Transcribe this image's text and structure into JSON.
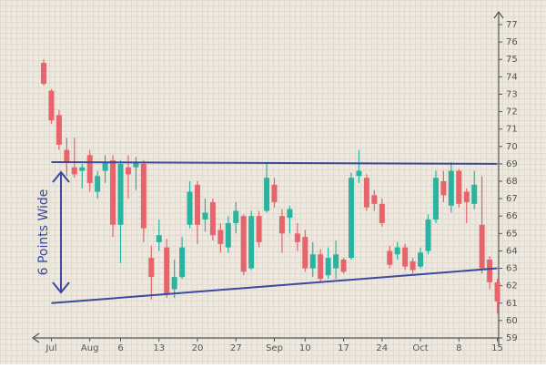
{
  "chart_data": {
    "type": "candlestick",
    "categories": [
      null,
      "Jul",
      null,
      null,
      null,
      null,
      "Aug",
      null,
      null,
      null,
      "6",
      null,
      null,
      null,
      null,
      "13",
      null,
      null,
      null,
      null,
      "20",
      null,
      null,
      null,
      null,
      "27",
      null,
      null,
      null,
      null,
      "Sep",
      null,
      null,
      null,
      "10",
      null,
      null,
      null,
      null,
      "17",
      null,
      null,
      null,
      null,
      "24",
      null,
      null,
      null,
      null,
      "Oct",
      null,
      null,
      null,
      null,
      "8",
      null,
      null,
      null,
      null,
      "15"
    ],
    "open": [
      74.8,
      73.2,
      71.8,
      69.8,
      68.8,
      68.6,
      69.5,
      67.4,
      68.6,
      69.2,
      65.5,
      68.8,
      68.8,
      69.0,
      63.6,
      64.5,
      64.2,
      61.8,
      62.5,
      65.5,
      67.8,
      65.8,
      66.8,
      65.2,
      64.2,
      65.6,
      66.0,
      63.0,
      66.0,
      66.3,
      67.8,
      66.0,
      65.9,
      65.0,
      64.8,
      63.0,
      63.8,
      62.6,
      63.0,
      63.5,
      63.6,
      68.3,
      68.2,
      67.2,
      66.7,
      64.0,
      63.8,
      64.2,
      63.4,
      63.1,
      64.0,
      65.8,
      68.0,
      66.6,
      68.6,
      67.4,
      66.7,
      65.5,
      63.5,
      62.2
    ],
    "high": [
      75.0,
      73.3,
      72.1,
      70.5,
      70.5,
      69.0,
      69.8,
      68.6,
      69.5,
      69.5,
      69.2,
      69.5,
      69.4,
      69.2,
      64.3,
      65.8,
      64.7,
      63.5,
      64.8,
      68.0,
      68.0,
      67.0,
      67.0,
      65.6,
      66.0,
      66.8,
      66.1,
      66.3,
      66.3,
      69.1,
      68.2,
      66.4,
      66.6,
      65.6,
      65.2,
      64.5,
      64.1,
      64.2,
      64.6,
      63.6,
      68.5,
      69.8,
      68.4,
      67.5,
      67.0,
      64.3,
      64.5,
      64.4,
      63.6,
      64.2,
      66.1,
      68.6,
      68.6,
      69.1,
      68.7,
      67.6,
      68.6,
      68.3,
      63.7,
      62.4
    ],
    "low": [
      73.5,
      71.3,
      69.8,
      68.3,
      68.2,
      67.6,
      67.4,
      67.0,
      67.9,
      64.8,
      63.3,
      67.0,
      67.5,
      64.5,
      61.2,
      64.0,
      61.3,
      61.3,
      62.4,
      65.3,
      64.4,
      65.1,
      64.6,
      63.9,
      63.9,
      65.0,
      62.6,
      62.9,
      64.2,
      66.2,
      66.5,
      63.9,
      65.0,
      64.0,
      62.8,
      62.5,
      62.2,
      62.4,
      62.4,
      62.7,
      63.5,
      67.9,
      66.3,
      66.3,
      65.4,
      63.0,
      63.5,
      62.9,
      62.7,
      63.0,
      63.8,
      65.6,
      66.8,
      66.2,
      66.5,
      65.6,
      66.4,
      62.7,
      61.8,
      60.4
    ],
    "close": [
      73.6,
      71.5,
      70.1,
      69.1,
      68.4,
      68.8,
      67.9,
      68.3,
      69.1,
      65.5,
      69.0,
      68.4,
      69.1,
      65.3,
      62.5,
      64.9,
      61.5,
      62.5,
      64.2,
      67.4,
      65.5,
      66.2,
      64.9,
      64.4,
      65.6,
      66.3,
      62.8,
      66.0,
      64.5,
      68.2,
      66.8,
      65.0,
      66.4,
      64.5,
      63.0,
      63.8,
      62.4,
      63.6,
      63.8,
      62.8,
      68.2,
      68.6,
      66.5,
      66.7,
      65.6,
      63.2,
      64.2,
      63.1,
      62.9,
      63.9,
      65.8,
      68.2,
      67.2,
      68.6,
      66.7,
      66.8,
      67.8,
      63.0,
      62.2,
      61.1
    ],
    "up_color": "#2ab3a0",
    "down_color": "#e8646c",
    "ylim": [
      59,
      77
    ],
    "yticks": [
      59,
      60,
      61,
      62,
      63,
      64,
      65,
      66,
      67,
      68,
      69,
      70,
      71,
      72,
      73,
      74,
      75,
      76,
      77
    ],
    "trendlines": [
      {
        "x": [
          1,
          59
        ],
        "values": [
          69.1,
          69.0
        ],
        "color": "#3a4a9c"
      },
      {
        "x": [
          1,
          59
        ],
        "values": [
          61.0,
          63.0
        ],
        "color": "#3a4a9c"
      }
    ],
    "annotation": "6 Points Wide"
  }
}
